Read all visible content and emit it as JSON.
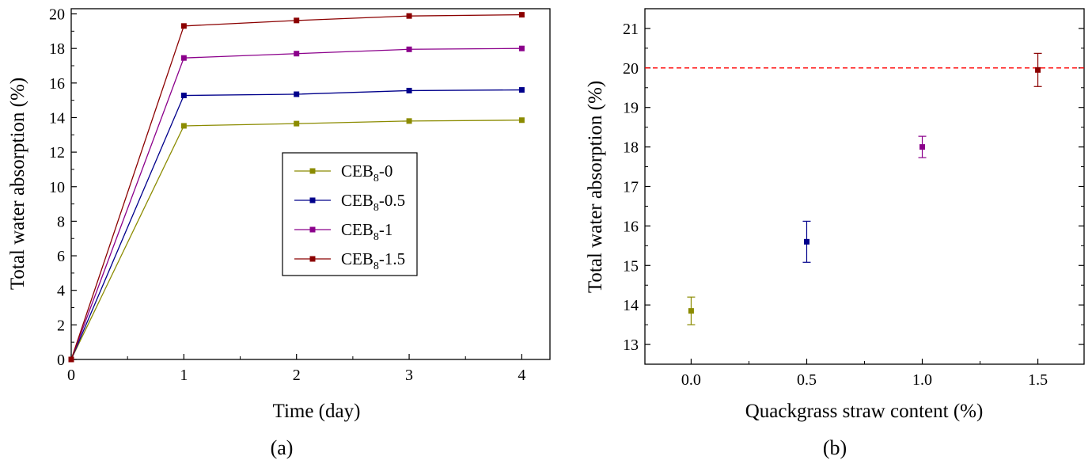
{
  "chart_data": [
    {
      "type": "line",
      "panel_label": "(a)",
      "xlabel": "Time (day)",
      "ylabel": "Total water absorption (%)",
      "xlim": [
        0,
        4.25
      ],
      "ylim": [
        0,
        20.3
      ],
      "x_ticks": [
        0,
        1,
        2,
        3,
        4
      ],
      "y_ticks": [
        0,
        2,
        4,
        6,
        8,
        10,
        12,
        14,
        16,
        18,
        20
      ],
      "x": [
        0,
        1,
        2,
        3,
        4
      ],
      "series": [
        {
          "name_main": "CEB",
          "name_sub": "8",
          "name_suffix": "-0",
          "color": "#8b8b00",
          "values": [
            0,
            13.52,
            13.65,
            13.8,
            13.85
          ]
        },
        {
          "name_main": "CEB",
          "name_sub": "8",
          "name_suffix": "-0.5",
          "color": "#00008b",
          "values": [
            0,
            15.28,
            15.35,
            15.56,
            15.6
          ]
        },
        {
          "name_main": "CEB",
          "name_sub": "8",
          "name_suffix": "-1",
          "color": "#8b008b",
          "values": [
            0,
            17.45,
            17.7,
            17.95,
            18.0
          ]
        },
        {
          "name_main": "CEB",
          "name_sub": "8",
          "name_suffix": "-1.5",
          "color": "#8b0000",
          "values": [
            0,
            19.3,
            19.62,
            19.88,
            19.95
          ]
        }
      ],
      "legend_position": "center-right",
      "grid": false
    },
    {
      "type": "scatter",
      "panel_label": "(b)",
      "xlabel": "Quackgrass straw content (%)",
      "ylabel": "Total water absorption (%)",
      "xlim": [
        -0.2,
        1.7
      ],
      "ylim": [
        12.5,
        21.5
      ],
      "x_ticks": [
        "0.0",
        "0.5",
        "1.0",
        "1.5"
      ],
      "y_ticks": [
        13,
        14,
        15,
        16,
        17,
        18,
        19,
        20,
        21
      ],
      "points": [
        {
          "x": 0.0,
          "y": 13.85,
          "err": 0.35,
          "color": "#8b8b00"
        },
        {
          "x": 0.5,
          "y": 15.6,
          "err": 0.52,
          "color": "#00008b"
        },
        {
          "x": 1.0,
          "y": 18.0,
          "err": 0.27,
          "color": "#8b008b"
        },
        {
          "x": 1.5,
          "y": 19.95,
          "err": 0.42,
          "color": "#8b0000"
        }
      ],
      "reference_line": {
        "y": 20,
        "color": "#ff0000",
        "style": "dashed"
      },
      "grid": false
    }
  ]
}
